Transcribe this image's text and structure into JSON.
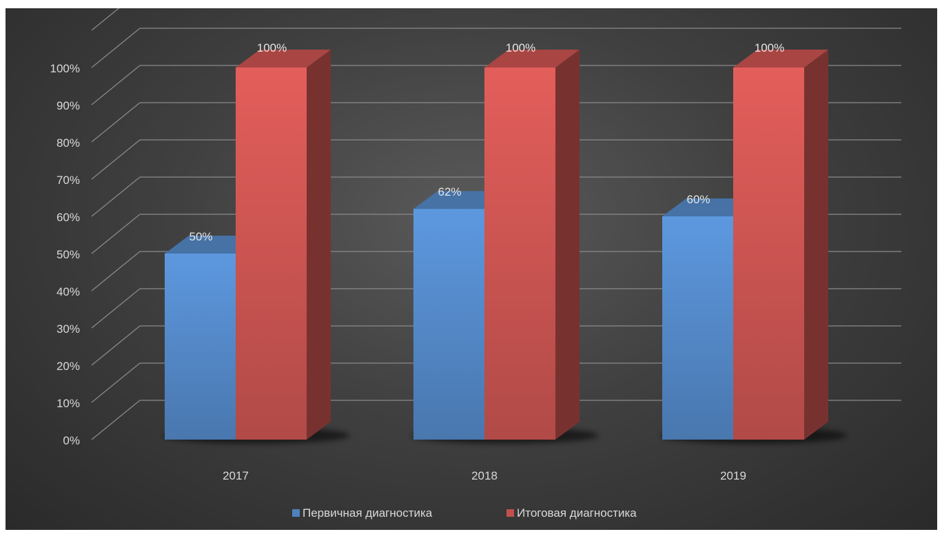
{
  "chart_data": {
    "type": "bar",
    "style": "3d-clustered-column",
    "categories": [
      "2017",
      "2018",
      "2019"
    ],
    "series": [
      {
        "name": "Первичная диагностика",
        "values": [
          50,
          62,
          60
        ],
        "labels": [
          "50%",
          "62%",
          "60%"
        ],
        "color": "#4f81bd"
      },
      {
        "name": "Итоговая диагностика",
        "values": [
          100,
          100,
          100
        ],
        "labels": [
          "100%",
          "100%",
          "100%"
        ],
        "color": "#c0504d"
      }
    ],
    "yticks": [
      "0%",
      "10%",
      "20%",
      "30%",
      "40%",
      "50%",
      "60%",
      "70%",
      "80%",
      "90%",
      "100%"
    ],
    "ylim": [
      0,
      110
    ],
    "grid": true,
    "legend_position": "bottom",
    "background": "#3f3f3f"
  }
}
